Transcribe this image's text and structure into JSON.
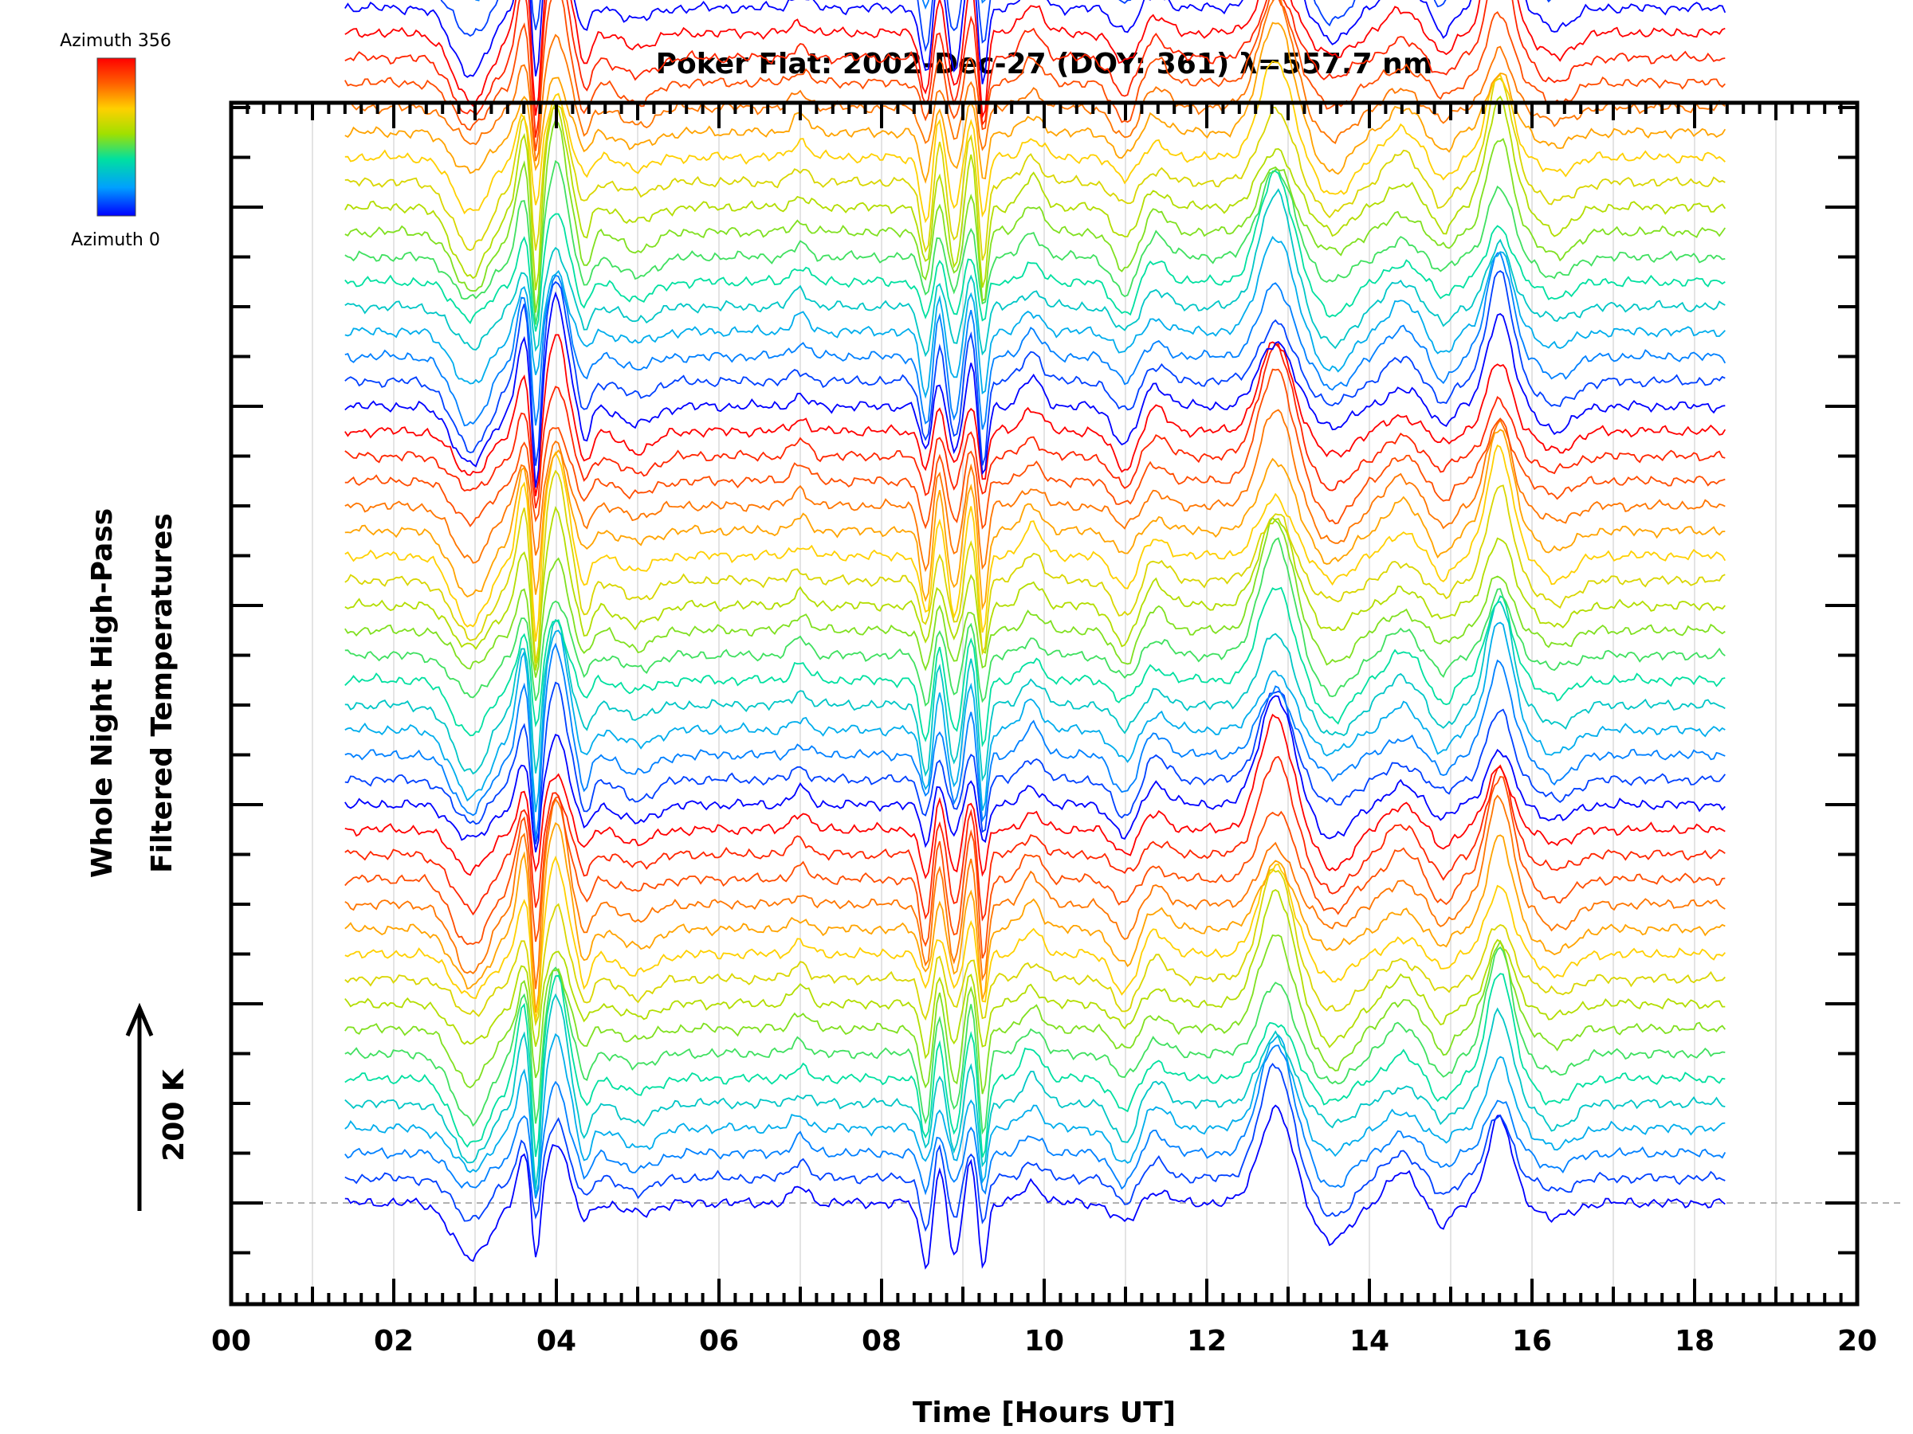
{
  "chart_data": {
    "type": "line",
    "title": "Poker Flat: 2002-Dec-27 (DOY: 361) λ=557.7 nm",
    "xlabel": "Time [Hours UT]",
    "ylabel_lines": [
      "Whole Night High-Pass",
      "Filtered Temperatures"
    ],
    "scale_label": "200 K",
    "xlim": [
      0,
      20
    ],
    "x_tick_labels": [
      "00",
      "02",
      "04",
      "06",
      "08",
      "10",
      "12",
      "14",
      "16",
      "18",
      "20"
    ],
    "x_tick_values": [
      0,
      2,
      4,
      6,
      8,
      10,
      12,
      14,
      16,
      18,
      20
    ],
    "time_range": [
      1.4,
      18.4
    ],
    "grid": true,
    "colorbar": {
      "top_label": "Azimuth 356",
      "bottom_label": "Azimuth 0",
      "colors": [
        "#0000ff",
        "#00a0ff",
        "#00e0a0",
        "#a0e000",
        "#ffd000",
        "#ff6000",
        "#ff0000"
      ]
    },
    "series_count": 64,
    "stack_offset_K": 25,
    "features": [
      {
        "t": 2.95,
        "amp": -70,
        "w": 0.22
      },
      {
        "t": 3.6,
        "amp": 75,
        "w": 0.08
      },
      {
        "t": 3.75,
        "amp": -110,
        "w": 0.05
      },
      {
        "t": 4.0,
        "amp": 110,
        "w": 0.12
      },
      {
        "t": 4.35,
        "amp": -35,
        "w": 0.07
      },
      {
        "t": 5.0,
        "amp": -20,
        "w": 0.2
      },
      {
        "t": 7.0,
        "amp": 18,
        "w": 0.1
      },
      {
        "t": 8.55,
        "amp": -70,
        "w": 0.07
      },
      {
        "t": 8.7,
        "amp": 45,
        "w": 0.06
      },
      {
        "t": 8.9,
        "amp": -60,
        "w": 0.07
      },
      {
        "t": 9.1,
        "amp": 50,
        "w": 0.06
      },
      {
        "t": 9.25,
        "amp": -85,
        "w": 0.05
      },
      {
        "t": 9.85,
        "amp": 30,
        "w": 0.12
      },
      {
        "t": 11.0,
        "amp": -40,
        "w": 0.15
      },
      {
        "t": 11.35,
        "amp": 25,
        "w": 0.15
      },
      {
        "t": 12.85,
        "amp": 115,
        "w": 0.2
      },
      {
        "t": 13.55,
        "amp": -40,
        "w": 0.22
      },
      {
        "t": 14.4,
        "amp": 30,
        "w": 0.18
      },
      {
        "t": 14.9,
        "amp": -25,
        "w": 0.12
      },
      {
        "t": 15.6,
        "amp": 110,
        "w": 0.15
      },
      {
        "t": 16.3,
        "amp": -25,
        "w": 0.2
      }
    ]
  }
}
